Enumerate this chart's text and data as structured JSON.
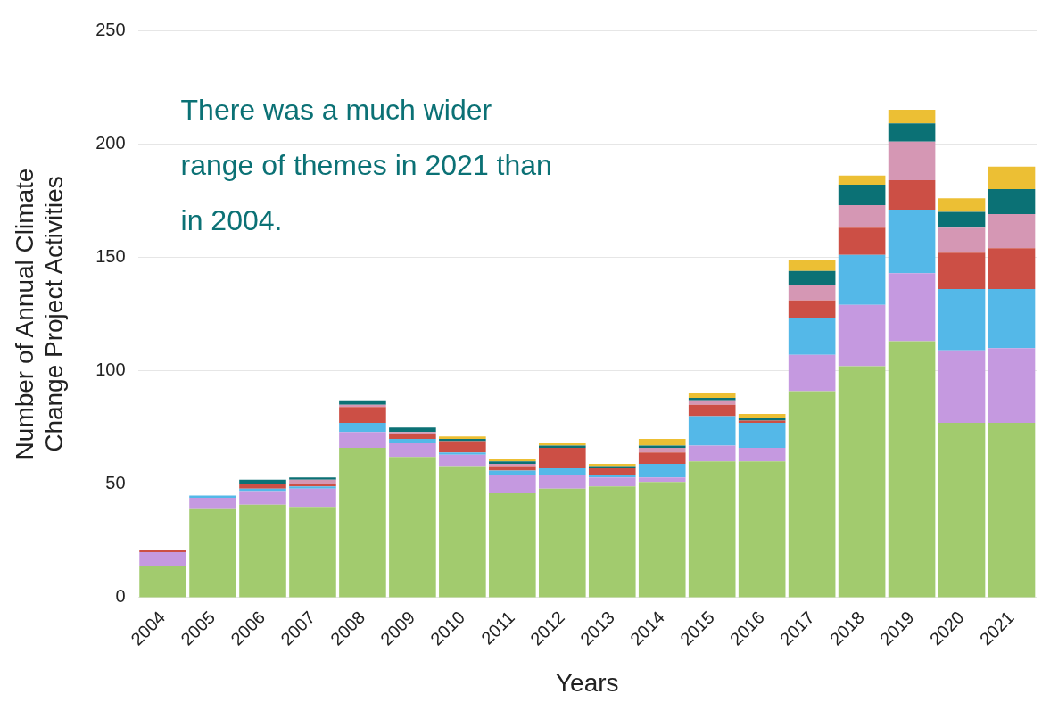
{
  "chart_data": {
    "type": "bar",
    "stacked": true,
    "xlabel": "Years",
    "ylabel": "Number of Annual Climate Change Project Activities",
    "categories": [
      "2004",
      "2005",
      "2006",
      "2007",
      "2008",
      "2009",
      "2010",
      "2011",
      "2012",
      "2013",
      "2014",
      "2015",
      "2016",
      "2017",
      "2018",
      "2019",
      "2020",
      "2021"
    ],
    "series": [
      {
        "color": "#a2cb6e",
        "values": [
          14,
          39,
          41,
          40,
          66,
          62,
          58,
          46,
          48,
          49,
          51,
          60,
          60,
          91,
          102,
          113,
          77,
          77
        ]
      },
      {
        "color": "#c599e0",
        "values": [
          6,
          5,
          6,
          8,
          7,
          6,
          5,
          8,
          6,
          4,
          2,
          7,
          6,
          16,
          27,
          30,
          32,
          33
        ]
      },
      {
        "color": "#54b8e8",
        "values": [
          0,
          1,
          1,
          1,
          4,
          2,
          1,
          2,
          3,
          1,
          6,
          13,
          11,
          16,
          22,
          28,
          27,
          26
        ]
      },
      {
        "color": "#cc4f45",
        "values": [
          1,
          0,
          2,
          1,
          7,
          2,
          5,
          2,
          9,
          3,
          5,
          5,
          1,
          8,
          12,
          13,
          16,
          18
        ]
      },
      {
        "color": "#d597b4",
        "values": [
          0,
          0,
          0,
          2,
          1,
          1,
          0,
          1,
          0,
          0,
          2,
          2,
          0,
          7,
          10,
          17,
          11,
          15
        ]
      },
      {
        "color": "#0b7175",
        "values": [
          0,
          0,
          2,
          1,
          2,
          2,
          1,
          1,
          1,
          1,
          1,
          1,
          1,
          6,
          9,
          8,
          7,
          11
        ]
      },
      {
        "color": "#ecbf34",
        "values": [
          0,
          0,
          0,
          0,
          0,
          0,
          1,
          1,
          1,
          1,
          3,
          2,
          2,
          5,
          4,
          6,
          6,
          10
        ]
      }
    ],
    "ylim": [
      0,
      250
    ],
    "yticks": [
      0,
      50,
      100,
      150,
      200,
      250
    ],
    "grid": "y",
    "legend": false,
    "annotations": [
      "There was a much wider range of themes in 2021 than in 2004."
    ]
  }
}
